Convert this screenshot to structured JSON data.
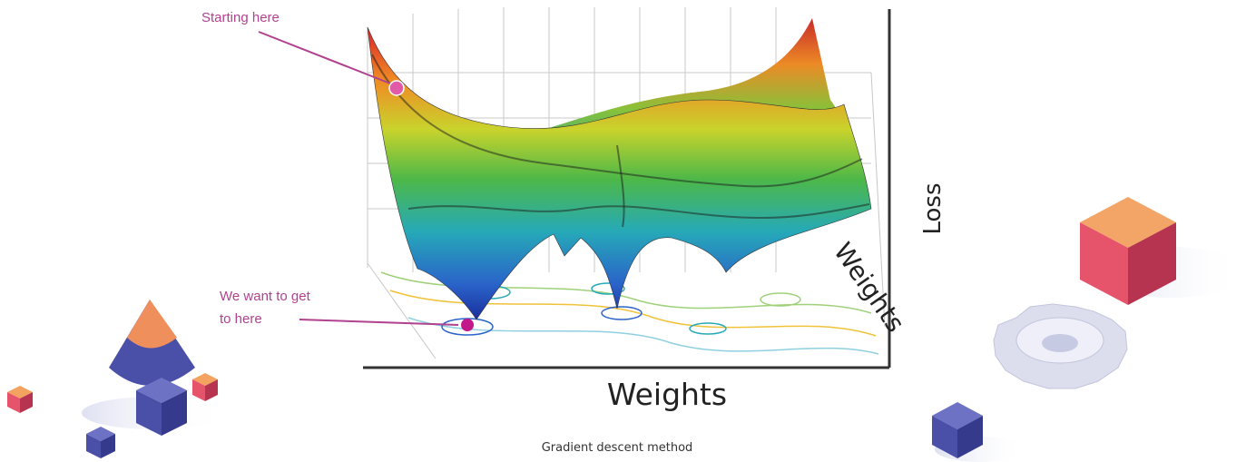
{
  "annotations": {
    "start": "Starting here",
    "goal_line1": "We want to get",
    "goal_line2": "to here"
  },
  "axes": {
    "z_label": "Loss",
    "x_label": "Weights",
    "y_label": "Weights"
  },
  "caption": "Gradient descent method"
}
